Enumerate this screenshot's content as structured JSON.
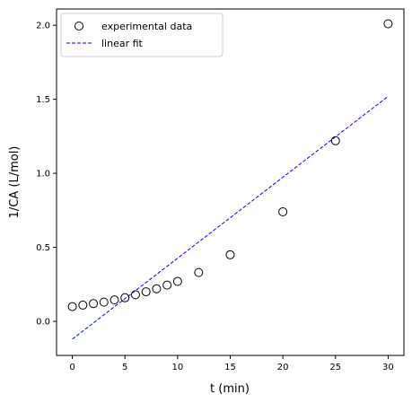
{
  "chart_data": {
    "type": "scatter",
    "xlabel": "t (min)",
    "ylabel": "1/CA (L/mol)",
    "xlim": [
      -1.5,
      31.5
    ],
    "ylim": [
      -0.23,
      2.11
    ],
    "x_ticks": [
      0,
      5,
      10,
      15,
      20,
      25,
      30
    ],
    "x_tick_labels": [
      "0",
      "5",
      "10",
      "15",
      "20",
      "25",
      "30"
    ],
    "y_ticks": [
      0.0,
      0.5,
      1.0,
      1.5,
      2.0
    ],
    "y_tick_labels": [
      "0.0",
      "0.5",
      "1.0",
      "1.5",
      "2.0"
    ],
    "grid": false,
    "legend_position": "top-left",
    "series": [
      {
        "name": "experimental data",
        "kind": "scatter",
        "marker": "open-circle",
        "color": "#000000",
        "x": [
          0,
          1,
          2,
          3,
          4,
          5,
          6,
          7,
          8,
          9,
          10,
          12,
          15,
          20,
          25,
          30
        ],
        "y": [
          0.1,
          0.11,
          0.12,
          0.13,
          0.145,
          0.16,
          0.18,
          0.2,
          0.22,
          0.245,
          0.27,
          0.33,
          0.45,
          0.74,
          1.22,
          2.01
        ]
      },
      {
        "name": "linear fit",
        "kind": "line",
        "style": "dashed",
        "color": "#0000ff",
        "x": [
          0,
          30
        ],
        "y": [
          -0.12,
          1.52
        ]
      }
    ]
  }
}
